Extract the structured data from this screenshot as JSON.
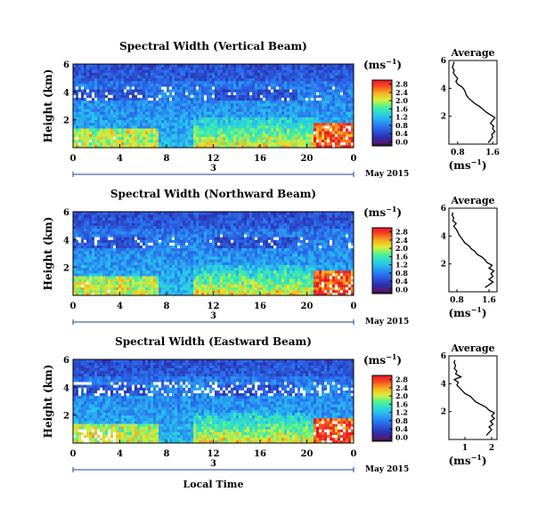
{
  "figure": {
    "heatmap_ylabel": "Height (km)",
    "cbar_unit": "(ms",
    "cbar_unit_exp": "−1",
    "profile_title": "Average",
    "profile_xlabel": "(ms",
    "profile_xlabel_exp": "−1",
    "date_day": "3",
    "date_label": "May 2015",
    "xlabel_bottom": "Local Time"
  },
  "chart_data": [
    {
      "type": "heatmap",
      "title": "Spectral Width (Vertical Beam)",
      "x_ticks": [
        "0",
        "4",
        "8",
        "12",
        "16",
        "20",
        "0"
      ],
      "y_ticks": [
        "2",
        "4",
        "6"
      ],
      "ylabel": "Height (km)",
      "xlim_hours": [
        0,
        24
      ],
      "ylim_km": [
        0,
        6
      ],
      "colorbar": {
        "label": "(ms−1)",
        "ticks": [
          "0.0",
          "0.4",
          "0.8",
          "1.2",
          "1.6",
          "2.0",
          "2.4",
          "2.8"
        ],
        "range": [
          0,
          3.0
        ],
        "colors": [
          "#1a1a1a",
          "#5a1a7a",
          "#2c2ca8",
          "#2a6cf0",
          "#27c7ef",
          "#3df0a0",
          "#d9ef3a",
          "#f7b21f",
          "#f5501f",
          "#e8142a"
        ]
      },
      "profile": {
        "title": "Average",
        "x_ticks": [
          "0.8",
          "1.6"
        ],
        "xlim": [
          0.6,
          1.7
        ],
        "y_ticks": [
          "2",
          "4",
          "6"
        ],
        "ylim": [
          0,
          6
        ],
        "xlabel": "(ms−1)",
        "height_km": [
          0.1,
          0.3,
          0.5,
          0.7,
          0.9,
          1.1,
          1.3,
          1.5,
          1.7,
          1.9,
          2.1,
          2.3,
          2.5,
          2.7,
          2.9,
          3.1,
          3.3,
          3.5,
          3.7,
          3.9,
          4.1,
          4.3,
          4.5,
          4.7,
          4.9,
          5.1,
          5.3,
          5.5,
          5.7,
          5.9
        ],
        "width": [
          1.5,
          1.55,
          1.6,
          1.58,
          1.65,
          1.6,
          1.62,
          1.55,
          1.6,
          1.65,
          1.55,
          1.45,
          1.38,
          1.3,
          1.2,
          1.12,
          1.05,
          1.0,
          0.98,
          0.95,
          0.9,
          0.8,
          0.76,
          0.8,
          0.75,
          0.7,
          0.72,
          0.68,
          0.7,
          0.72
        ]
      }
    },
    {
      "type": "heatmap",
      "title": "Spectral Width (Northward Beam)",
      "x_ticks": [
        "0",
        "4",
        "8",
        "12",
        "16",
        "20",
        "0"
      ],
      "y_ticks": [
        "2",
        "4",
        "6"
      ],
      "ylabel": "Height (km)",
      "xlim_hours": [
        0,
        24
      ],
      "ylim_km": [
        0,
        6
      ],
      "colorbar": {
        "label": "(ms−1)",
        "ticks": [
          "0.0",
          "0.4",
          "0.8",
          "1.2",
          "1.6",
          "2.0",
          "2.4",
          "2.8"
        ],
        "range": [
          0,
          3.0
        ],
        "colors": [
          "#1a1a1a",
          "#5a1a7a",
          "#2c2ca8",
          "#2a6cf0",
          "#27c7ef",
          "#3df0a0",
          "#d9ef3a",
          "#f7b21f",
          "#f5501f",
          "#e8142a"
        ]
      },
      "profile": {
        "title": "Average",
        "x_ticks": [
          "0.8",
          "1.6"
        ],
        "xlim": [
          0.6,
          1.8
        ],
        "y_ticks": [
          "2",
          "4",
          "6"
        ],
        "ylim": [
          0,
          6
        ],
        "xlabel": "(ms−1)",
        "height_km": [
          0.3,
          0.5,
          0.7,
          0.9,
          1.1,
          1.3,
          1.5,
          1.7,
          1.9,
          2.1,
          2.3,
          2.5,
          2.7,
          2.9,
          3.1,
          3.3,
          3.5,
          3.7,
          3.9,
          4.1,
          4.3,
          4.5,
          4.7,
          4.9,
          5.1,
          5.3,
          5.5,
          5.7
        ],
        "width": [
          1.5,
          1.6,
          1.7,
          1.6,
          1.7,
          1.65,
          1.72,
          1.6,
          1.68,
          1.55,
          1.5,
          1.42,
          1.3,
          1.25,
          1.15,
          1.1,
          1.0,
          0.95,
          0.9,
          0.85,
          0.82,
          0.78,
          0.72,
          0.78,
          0.7,
          0.72,
          0.68,
          0.7
        ]
      }
    },
    {
      "type": "heatmap",
      "title": "Spectral Width (Eastward Beam)",
      "x_ticks": [
        "0",
        "4",
        "8",
        "12",
        "16",
        "20",
        "0"
      ],
      "y_ticks": [
        "2",
        "4",
        "6"
      ],
      "ylabel": "Height (km)",
      "xlim_hours": [
        0,
        24
      ],
      "ylim_km": [
        0,
        6
      ],
      "colorbar": {
        "label": "(ms−1)",
        "ticks": [
          "0.0",
          "0.4",
          "0.8",
          "1.2",
          "1.6",
          "2.0",
          "2.4",
          "2.8"
        ],
        "range": [
          0,
          3.0
        ],
        "colors": [
          "#1a1a1a",
          "#5a1a7a",
          "#2c2ca8",
          "#2a6cf0",
          "#27c7ef",
          "#3df0a0",
          "#d9ef3a",
          "#f7b21f",
          "#f5501f",
          "#e8142a"
        ]
      },
      "profile": {
        "title": "Average",
        "x_ticks": [
          "1",
          "2"
        ],
        "xlim": [
          0.4,
          2.2
        ],
        "y_ticks": [
          "2",
          "4",
          "6"
        ],
        "ylim": [
          0,
          6
        ],
        "xlabel": "(ms−1)",
        "height_km": [
          0.3,
          0.5,
          0.7,
          0.9,
          1.1,
          1.3,
          1.5,
          1.7,
          1.9,
          2.1,
          2.3,
          2.5,
          2.7,
          2.9,
          3.1,
          3.3,
          3.5,
          3.7,
          3.9,
          4.1,
          4.3,
          4.5,
          4.7,
          4.9,
          5.1,
          5.3,
          5.5,
          5.7
        ],
        "width": [
          1.8,
          1.9,
          2.0,
          1.9,
          2.05,
          1.95,
          2.1,
          2.0,
          2.1,
          1.9,
          1.8,
          1.6,
          1.4,
          1.3,
          1.2,
          1.0,
          0.9,
          0.8,
          0.7,
          0.75,
          0.6,
          0.85,
          0.65,
          0.7,
          0.6,
          0.65,
          0.6,
          0.62
        ]
      }
    }
  ]
}
